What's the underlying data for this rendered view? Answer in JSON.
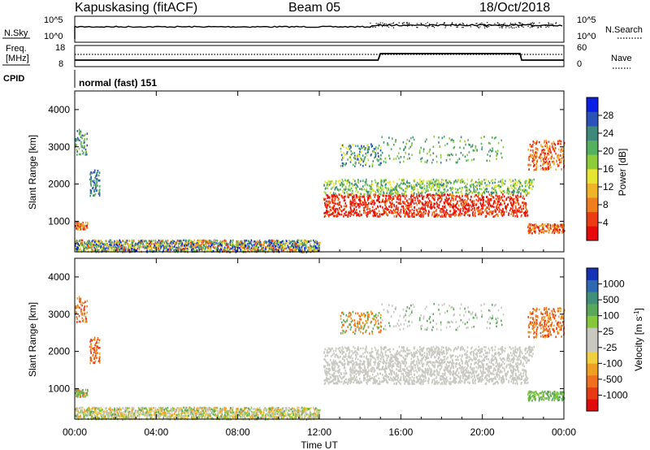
{
  "header": {
    "station": "Kapuskasing (fitACF)",
    "beam": "Beam 05",
    "date": "18/Oct/2018"
  },
  "left_labels": {
    "nsky": "N.Sky",
    "freq": "Freq.",
    "mhz": "[MHz]",
    "cpid": "CPID"
  },
  "right_labels": {
    "nsearch": "N.Search",
    "nave": "Nave"
  },
  "cpid_text": "normal (fast) 151",
  "noise_ticks_left": [
    "10^5",
    "10^0"
  ],
  "noise_ticks_right": [
    "10^5",
    "10^0"
  ],
  "freq_ticks": [
    "18",
    "8"
  ],
  "nave_ticks": [
    "60",
    "0"
  ],
  "power_colorbar": {
    "label": "Power [dB]",
    "ticks": [
      "28",
      "24",
      "20",
      "16",
      "12",
      "8",
      "4"
    ],
    "colors": [
      "#0a1ee6",
      "#2a52b8",
      "#3d8a7c",
      "#55b060",
      "#8fcc3a",
      "#e6e632",
      "#f0b428",
      "#f07d1e",
      "#eb3c14",
      "#e60a0a"
    ]
  },
  "velocity_colorbar": {
    "label_main": "Velocity [m s",
    "label_sup": "-1",
    "label_end": "]",
    "ticks": [
      "1000",
      "500",
      "100",
      "25",
      "-25",
      "-100",
      "-500",
      "-1000"
    ],
    "colors": [
      "#1432b4",
      "#2f6ab0",
      "#3f8f7a",
      "#5aa85a",
      "#86c83a",
      "#c8c8c0",
      "#c8c8c0",
      "#f0d040",
      "#f0a020",
      "#f07020",
      "#e83a14",
      "#e00a0a"
    ]
  },
  "chart_data": [
    {
      "type": "heatmap",
      "title": "Power",
      "xlabel": "Time UT",
      "ylabel": "Slant Range [km]",
      "x_ticks": [
        "00:00",
        "04:00",
        "08:00",
        "12:00",
        "16:00",
        "20:00",
        "00:00"
      ],
      "y_ticks": [
        1000,
        2000,
        3000,
        4000
      ],
      "xlim_hours": [
        0,
        24
      ],
      "ylim_km": [
        180,
        4500
      ],
      "colorbar": "Power [dB]",
      "colorbar_range": [
        0,
        30
      ]
    },
    {
      "type": "heatmap",
      "title": "Velocity",
      "xlabel": "Time UT",
      "ylabel": "Slant Range [km]",
      "x_ticks": [
        "00:00",
        "04:00",
        "08:00",
        "12:00",
        "16:00",
        "20:00",
        "00:00"
      ],
      "y_ticks": [
        1000,
        2000,
        3000,
        4000
      ],
      "xlim_hours": [
        0,
        24
      ],
      "ylim_km": [
        180,
        4500
      ],
      "colorbar": "Velocity [m s^-1]",
      "colorbar_range": [
        -1000,
        1000
      ]
    }
  ]
}
